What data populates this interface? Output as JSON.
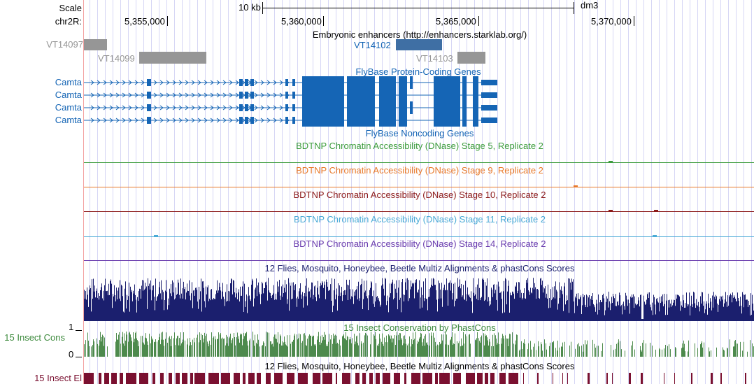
{
  "scale": {
    "label": "Scale",
    "bar_label": "10 kb",
    "assembly": "dm3"
  },
  "chrom": {
    "label": "chr2R:",
    "ticks": [
      "5,355,000",
      "5,360,000",
      "5,365,000",
      "5,370,000"
    ]
  },
  "enhancers": {
    "title": "Embryonic enhancers (http://enhancers.starklab.org/)",
    "items": [
      "VT14097",
      "VT14099",
      "VT14102",
      "VT14103"
    ]
  },
  "genes": {
    "coding_title": "FlyBase Protein-Coding Genes",
    "noncoding_title": "FlyBase Noncoding Genes",
    "transcripts": [
      "Camta",
      "Camta",
      "Camta",
      "Camta"
    ]
  },
  "dnase": [
    {
      "title": "BDTNP Chromatin Accessibility (DNase) Stage 5, Replicate 2",
      "color": "#3c9c3c"
    },
    {
      "title": "BDTNP Chromatin Accessibility (DNase) Stage 9, Replicate 2",
      "color": "#e8792a"
    },
    {
      "title": "BDTNP Chromatin Accessibility (DNase) Stage 10, Replicate 2",
      "color": "#8c1a1a"
    },
    {
      "title": "BDTNP Chromatin Accessibility (DNase) Stage 11, Replicate 2",
      "color": "#4aaad6"
    },
    {
      "title": "BDTNP Chromatin Accessibility (DNase) Stage 14, Replicate 2",
      "color": "#6a3cae"
    }
  ],
  "conservation": {
    "multiz_title": "12 Flies, Mosquito, Honeybee, Beetle Multiz Alignments & phastCons Scores",
    "phastcons_title": "15 Insect Conservation by PhastCons",
    "phastcons_label": "15 Insect Cons",
    "y_max": "1",
    "y_min": "0",
    "elements_title": "12 Flies, Mosquito, Honeybee, Beetle Multiz Alignments & phastCons Scores",
    "elements_label": "15 Insect El"
  },
  "colors": {
    "gene": "#1565b5",
    "enhancer_gray": "#969696",
    "enhancer_blue": "#3f6fa4",
    "multiz": "#1b1f6e",
    "phastcons": "#4d8a4d",
    "elements": "#7a1030"
  }
}
